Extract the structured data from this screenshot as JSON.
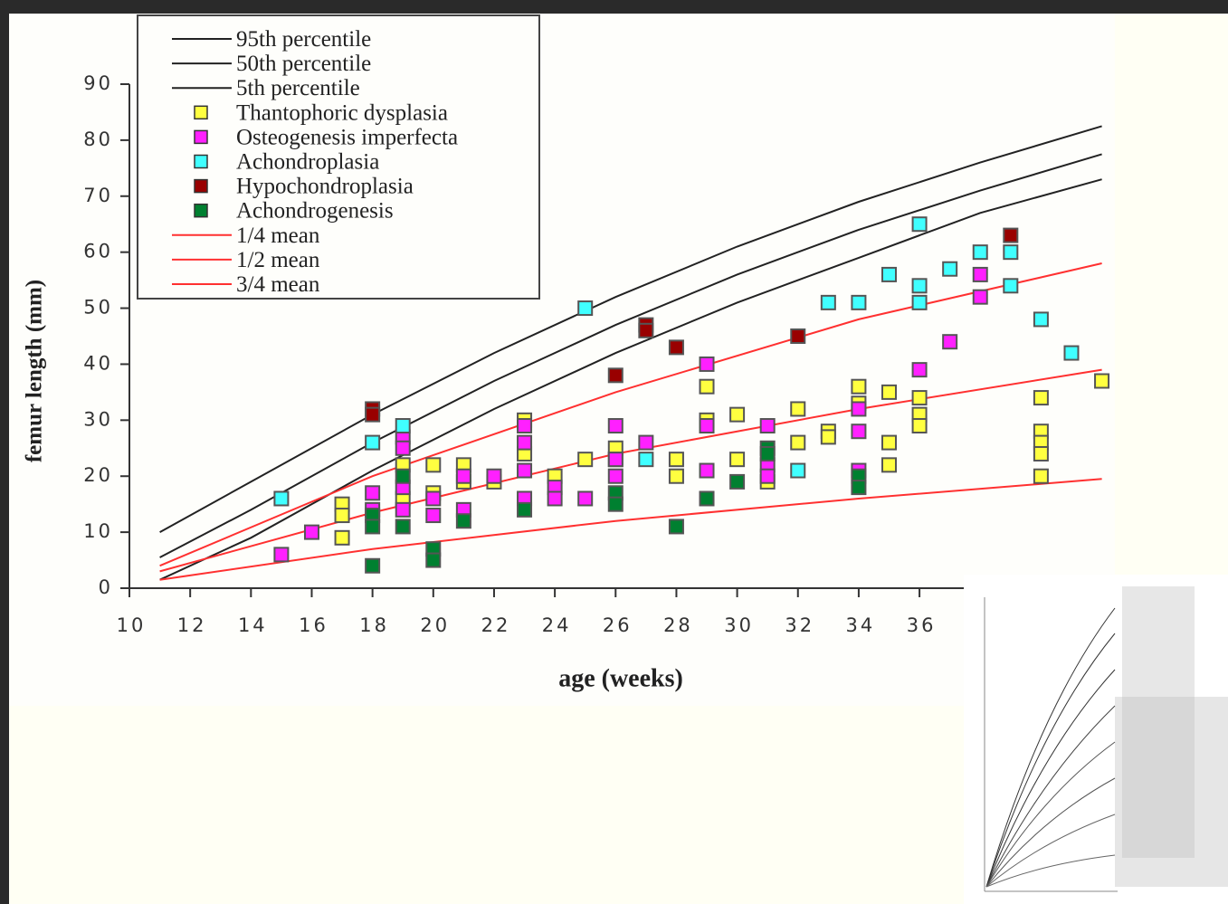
{
  "chart_data": {
    "type": "scatter",
    "x_label": "age (weeks)",
    "y_label": "femur length (mm)",
    "xlim": [
      10,
      42
    ],
    "xticks": [
      10,
      12,
      14,
      16,
      18,
      20,
      22,
      24,
      26,
      28,
      30,
      32,
      34,
      36
    ],
    "ylim": [
      0,
      90
    ],
    "yticks": [
      0,
      10,
      20,
      30,
      40,
      50,
      60,
      70,
      80,
      90
    ],
    "grid": false,
    "legend": "top-left",
    "series": [
      {
        "name": "95th percentile",
        "type": "line",
        "color": "#222222",
        "x": [
          11,
          14,
          18,
          22,
          26,
          30,
          34,
          38,
          42
        ],
        "values": [
          10,
          19,
          31,
          42,
          52,
          61,
          69,
          76,
          82.5
        ]
      },
      {
        "name": "50th percentile",
        "type": "line",
        "color": "#222222",
        "x": [
          11,
          14,
          18,
          22,
          26,
          30,
          34,
          38,
          42
        ],
        "values": [
          5.5,
          14,
          26,
          37,
          47,
          56,
          64,
          71,
          77.5
        ]
      },
      {
        "name": "5th percentile",
        "type": "line",
        "color": "#222222",
        "x": [
          11,
          14,
          18,
          22,
          26,
          30,
          34,
          38,
          42
        ],
        "values": [
          1.5,
          9,
          21,
          32,
          42,
          51,
          59,
          67,
          73
        ]
      },
      {
        "name": "Thantophoric dysplasia",
        "type": "scatter",
        "color": "#ffff40",
        "x": [
          17,
          17,
          17,
          19,
          19,
          20,
          20,
          21,
          21,
          22,
          23,
          23,
          24,
          25,
          26,
          26,
          28,
          28,
          29,
          29,
          30,
          30,
          31,
          32,
          32,
          33,
          33,
          34,
          34,
          35,
          35,
          35,
          36,
          36,
          36,
          40,
          40,
          40,
          40,
          40,
          42
        ],
        "values": [
          15,
          13,
          9,
          22,
          16,
          22,
          17,
          22,
          19,
          19,
          30,
          24,
          20,
          23,
          25,
          23,
          23,
          20,
          36,
          30,
          31,
          23,
          19,
          32,
          26,
          28,
          27,
          36,
          33,
          35,
          26,
          22,
          34,
          31,
          29,
          34,
          28,
          26,
          24,
          20,
          37
        ]
      },
      {
        "name": "Osteogenesis imperfecta",
        "type": "scatter",
        "color": "#ff20ff",
        "x": [
          15,
          16,
          18,
          18,
          19,
          19,
          19,
          19,
          20,
          20,
          21,
          21,
          22,
          23,
          23,
          23,
          23,
          24,
          24,
          25,
          26,
          26,
          26,
          27,
          29,
          29,
          29,
          31,
          31,
          31,
          34,
          34,
          34,
          36,
          37,
          38,
          38
        ],
        "values": [
          6,
          10,
          17,
          14,
          27,
          25,
          18,
          14,
          16,
          13,
          20,
          14,
          20,
          29,
          26,
          21,
          16,
          18,
          16,
          16,
          29,
          23,
          20,
          26,
          40,
          29,
          21,
          29,
          22,
          20,
          32,
          28,
          21,
          39,
          44,
          56,
          52
        ]
      },
      {
        "name": "Achondroplasia",
        "type": "scatter",
        "color": "#40ffff",
        "x": [
          15,
          18,
          19,
          25,
          27,
          32,
          33,
          34,
          35,
          36,
          36,
          36,
          37,
          38,
          39,
          39,
          40,
          41
        ],
        "values": [
          16,
          26,
          29,
          50,
          23,
          21,
          51,
          51,
          56,
          65,
          54,
          51,
          57,
          60,
          60,
          54,
          48,
          42
        ]
      },
      {
        "name": "Hypochondroplasia",
        "type": "scatter",
        "color": "#990000",
        "x": [
          18,
          18,
          26,
          27,
          27,
          28,
          32,
          39
        ],
        "values": [
          32,
          31,
          38,
          47,
          46,
          43,
          45,
          63
        ]
      },
      {
        "name": "Achondrogenesis",
        "type": "scatter",
        "color": "#008030",
        "x": [
          18,
          18,
          18,
          19,
          19,
          20,
          20,
          21,
          23,
          26,
          26,
          28,
          29,
          30,
          31,
          31,
          34,
          34
        ],
        "values": [
          4,
          13,
          11,
          20,
          11,
          7,
          5,
          12,
          14,
          17,
          15,
          11,
          16,
          19,
          25,
          24,
          20,
          18
        ]
      },
      {
        "name": "1/4 mean",
        "type": "line",
        "color": "#ff3030",
        "x": [
          11,
          18,
          26,
          34,
          42
        ],
        "values": [
          1.5,
          7,
          12,
          16,
          19.5
        ]
      },
      {
        "name": "1/2 mean",
        "type": "line",
        "color": "#ff3030",
        "x": [
          11,
          18,
          26,
          34,
          42
        ],
        "values": [
          3,
          13.5,
          24,
          32,
          39
        ]
      },
      {
        "name": "3/4 mean",
        "type": "line",
        "color": "#ff3030",
        "x": [
          11,
          18,
          26,
          34,
          42
        ],
        "values": [
          4,
          20,
          35,
          48,
          58
        ]
      }
    ]
  }
}
